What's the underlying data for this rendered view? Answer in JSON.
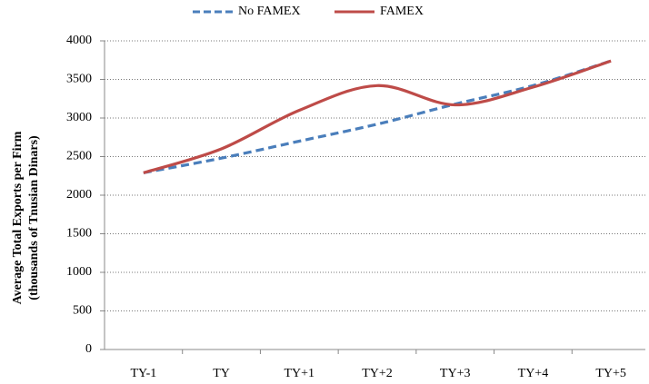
{
  "chart_data": {
    "type": "line",
    "y_label": [
      "Average Total Exports per Firm",
      "(thousands of  Tnusian Dinars)"
    ],
    "categories": [
      "TY-1",
      "TY",
      "TY+1",
      "TY+2",
      "TY+3",
      "TY+4",
      "TY+5"
    ],
    "series": [
      {
        "name": "No FAMEX",
        "color": "#4a7ebb",
        "dashed": true,
        "values": [
          2290,
          2480,
          2700,
          2920,
          3180,
          3420,
          3740
        ]
      },
      {
        "name": "FAMEX",
        "color": "#be4b48",
        "dashed": false,
        "values": [
          2290,
          2600,
          3100,
          3420,
          3170,
          3400,
          3740
        ]
      }
    ],
    "ylim": [
      0,
      4000
    ],
    "yticks": [
      0,
      500,
      1000,
      1500,
      2000,
      2500,
      3000,
      3500,
      4000
    ],
    "grid": true,
    "legend": "top"
  }
}
